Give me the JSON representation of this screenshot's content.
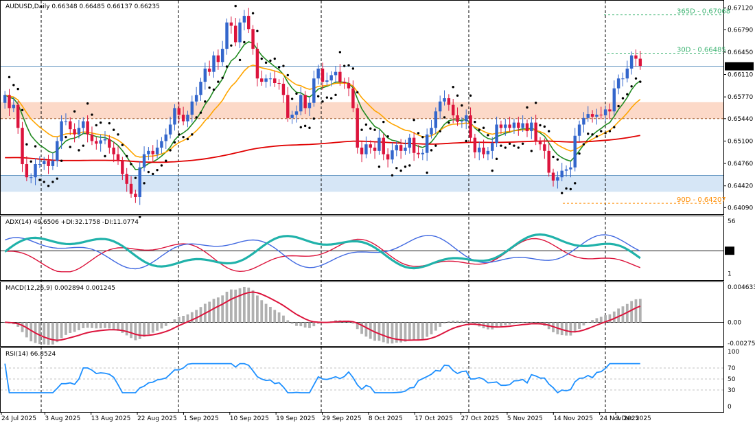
{
  "chart_data": {
    "type": "candlestick",
    "symbol_header": "AUDUSD,Daily",
    "ohlc_header": "0.66348 0.66485 0.66137 0.66235",
    "last_price_label": "0.66235",
    "x_tick_labels": [
      "24 Jul 2025",
      "3 Aug 2025",
      "13 Aug 2025",
      "22 Aug 2025",
      "1 Sep 2025",
      "10 Sep 2025",
      "19 Sep 2025",
      "29 Sep 2025",
      "8 Oct 2025",
      "17 Oct 2025",
      "27 Oct 2025",
      "5 Nov 2025",
      "14 Nov 2025",
      "24 Nov 2025",
      "3 Dec 2025"
    ],
    "price_axis_ticks": [
      "0.67120",
      "0.66790",
      "0.66450",
      "0.66110",
      "0.65770",
      "0.65440",
      "0.65100",
      "0.64760",
      "0.64420",
      "0.64090"
    ],
    "price_range": [
      0.64,
      0.6722
    ],
    "levels": [
      {
        "label": "365D - 0.67068",
        "value": 0.67068,
        "color": "#3cb371"
      },
      {
        "label": "30D - 0.66485",
        "value": 0.66485,
        "color": "#3cb371"
      },
      {
        "label": "90D - 0.64207",
        "value": 0.64207,
        "color": "#ff8c00"
      }
    ],
    "zones": [
      {
        "from": 0.6544,
        "to": 0.6569,
        "color": "#fcd9c8"
      },
      {
        "from": 0.6433,
        "to": 0.6458,
        "color": "#d6e6f6"
      }
    ],
    "resistance_line": 0.66235,
    "colors": {
      "bull": "#3366cc",
      "bear": "#dc143c",
      "ma_fast": "#228b22",
      "ma_mid": "#ffa500",
      "ma_slow": "#e00000",
      "sar": "#000000"
    },
    "close": [
      0.658,
      0.656,
      0.6565,
      0.653,
      0.6475,
      0.6455,
      0.6455,
      0.6475,
      0.6475,
      0.648,
      0.6472,
      0.648,
      0.651,
      0.654,
      0.654,
      0.6528,
      0.652,
      0.653,
      0.654,
      0.652,
      0.651,
      0.6506,
      0.6511,
      0.6513,
      0.65,
      0.649,
      0.648,
      0.646,
      0.6445,
      0.643,
      0.6425,
      0.647,
      0.649,
      0.6495,
      0.649,
      0.65,
      0.651,
      0.652,
      0.6535,
      0.656,
      0.655,
      0.654,
      0.655,
      0.657,
      0.658,
      0.66,
      0.662,
      0.6615,
      0.664,
      0.663,
      0.665,
      0.669,
      0.6685,
      0.666,
      0.669,
      0.67,
      0.668,
      0.665,
      0.6605,
      0.66,
      0.6605,
      0.6605,
      0.6598,
      0.6597,
      0.658,
      0.6545,
      0.655,
      0.6555,
      0.658,
      0.656,
      0.6568,
      0.6605,
      0.662,
      0.66,
      0.6602,
      0.661,
      0.6615,
      0.66,
      0.6598,
      0.659,
      0.656,
      0.65,
      0.649,
      0.6505,
      0.65,
      0.6495,
      0.6515,
      0.649,
      0.6482,
      0.6496,
      0.6504,
      0.6495,
      0.65,
      0.6515,
      0.6492,
      0.649,
      0.6492,
      0.652,
      0.653,
      0.6555,
      0.657,
      0.6575,
      0.6565,
      0.6549,
      0.6539,
      0.654,
      0.6549,
      0.6515,
      0.6493,
      0.65,
      0.649,
      0.6495,
      0.6507,
      0.6535,
      0.653,
      0.6535,
      0.653,
      0.6538,
      0.653,
      0.6537,
      0.6525,
      0.6538,
      0.651,
      0.6505,
      0.6495,
      0.6462,
      0.645,
      0.6455,
      0.6465,
      0.6467,
      0.647,
      0.6518,
      0.6535,
      0.6545,
      0.6551,
      0.6547,
      0.655,
      0.6549,
      0.6558,
      0.6555,
      0.659,
      0.6605,
      0.6605,
      0.662,
      0.664,
      0.6635,
      0.6624
    ]
  },
  "adx_panel": {
    "header": "ADX(14) 49.6506 +DI:32.1758 -DI:11.0774",
    "axis_ticks": [
      "56",
      "1"
    ],
    "level_label": "25",
    "colors": {
      "adx": "#20b2aa",
      "plus_di": "#4169e1",
      "minus_di": "#dc143c"
    }
  },
  "macd_panel": {
    "header": "MACD(12,26,9) 0.002894 0.001245",
    "axis_ticks": [
      "0.004633",
      "0.00",
      "-0.002753"
    ],
    "colors": {
      "histogram": "#b0b0b0",
      "signal": "#dc143c"
    }
  },
  "rsi_panel": {
    "header": "RSI(14) 66.8524",
    "axis_ticks": [
      "100",
      "70",
      "50",
      "30",
      "0"
    ],
    "color": "#1e90ff"
  }
}
